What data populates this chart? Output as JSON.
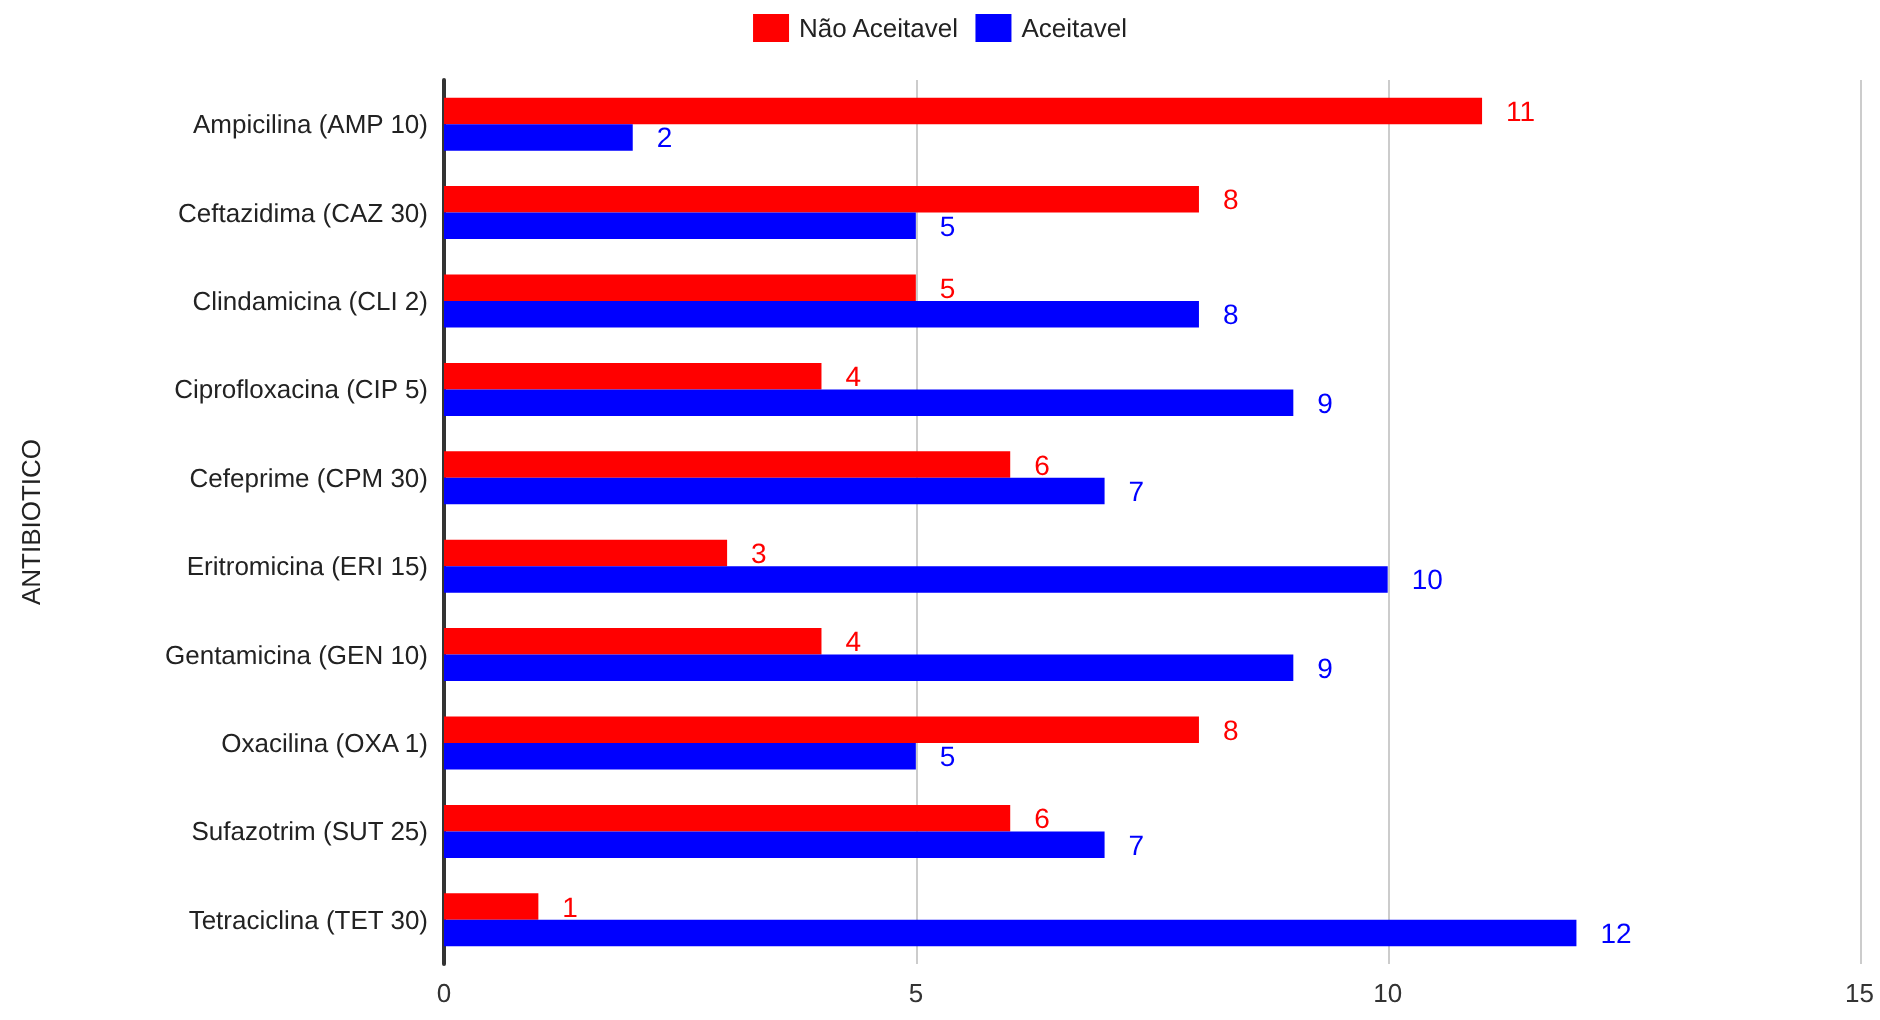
{
  "chart_data": {
    "type": "bar",
    "orientation": "horizontal",
    "ylabel": "ANTIBIOTICO",
    "categories": [
      "Ampicilina (AMP 10)",
      "Ceftazidima (CAZ 30)",
      "Clindamicina (CLI 2)",
      "Ciprofloxacina (CIP 5)",
      "Cefeprime (CPM 30)",
      "Eritromicina (ERI 15)",
      "Gentamicina (GEN 10)",
      "Oxacilina (OXA 1)",
      "Sufazotrim (SUT 25)",
      "Tetraciclina (TET 30)"
    ],
    "series": [
      {
        "name": "Não Aceitavel",
        "color": "#ff0000",
        "values": [
          11,
          8,
          5,
          4,
          6,
          3,
          4,
          8,
          6,
          1
        ]
      },
      {
        "name": "Aceitavel",
        "color": "#0000ff",
        "values": [
          2,
          5,
          8,
          9,
          7,
          10,
          9,
          5,
          7,
          12
        ]
      }
    ],
    "xlim": [
      0,
      15
    ],
    "xticks": [
      0,
      5,
      10,
      15
    ],
    "grid": "x",
    "legend": "top",
    "data_labels": true
  }
}
